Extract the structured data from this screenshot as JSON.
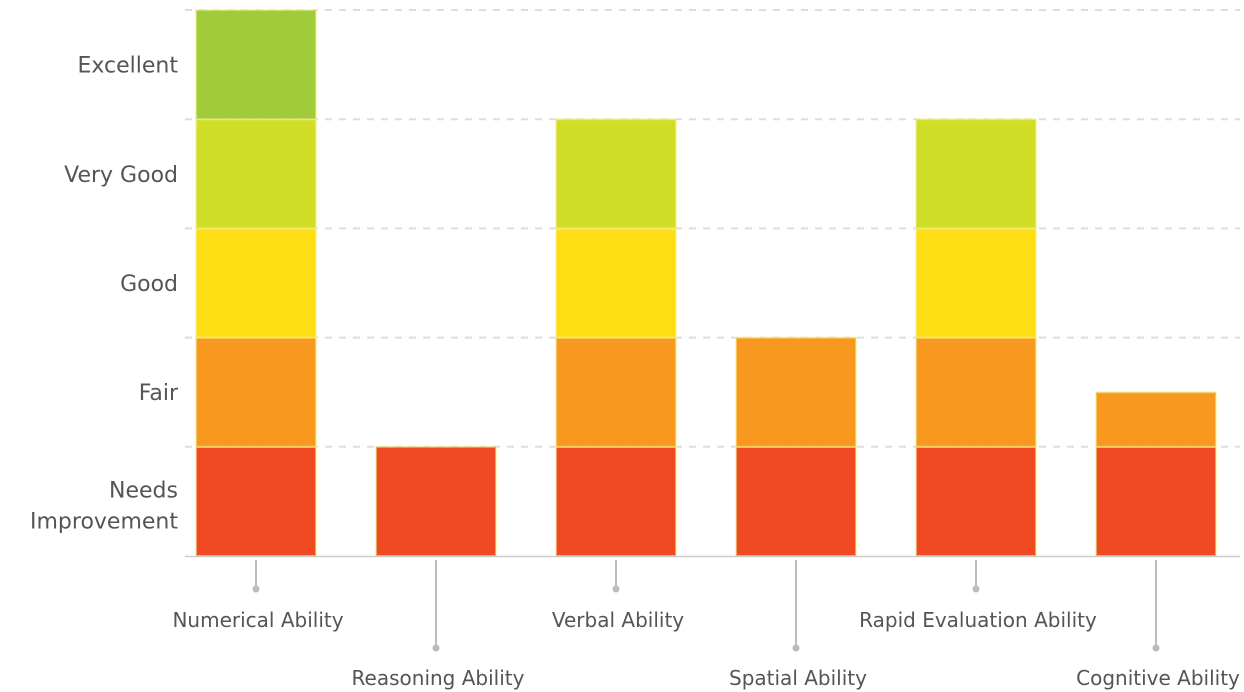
{
  "chart_data": {
    "type": "bar",
    "stacked": true,
    "levels": [
      {
        "label": "Needs Improvement",
        "color": "#F04A25"
      },
      {
        "label": "Fair",
        "color": "#F8981E"
      },
      {
        "label": "Good",
        "color": "#FEDF15"
      },
      {
        "label": "Very Good",
        "color": "#D0DE28"
      },
      {
        "label": "Excellent",
        "color": "#A0CB3B"
      }
    ],
    "categories": [
      "Numerical Ability",
      "Reasoning Ability",
      "Verbal Ability",
      "Spatial Ability",
      "Rapid Evaluation Ability",
      "Cognitive Ability"
    ],
    "values": [
      5,
      1,
      4,
      2,
      4,
      1.5
    ],
    "ylim": [
      0,
      5
    ],
    "grid": true,
    "xlabel": "",
    "ylabel": "",
    "title": ""
  }
}
